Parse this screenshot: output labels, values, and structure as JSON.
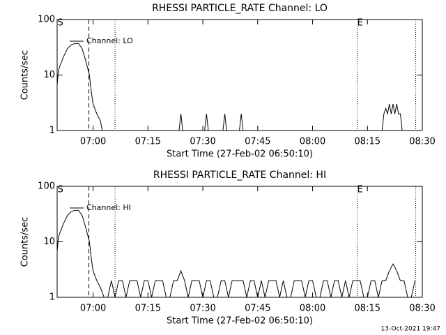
{
  "chart_data": [
    {
      "type": "line",
      "title": "RHESSI PARTICLE_RATE Channel: LO",
      "xlabel": "Start Time (27-Feb-02 06:50:10)",
      "ylabel": "Counts/sec",
      "log_y": true,
      "xlim": [
        50.17,
        150
      ],
      "ylim": [
        1,
        100
      ],
      "xticks": [
        {
          "value": 60,
          "label": "07:00"
        },
        {
          "value": 75,
          "label": "07:15"
        },
        {
          "value": 90,
          "label": "07:30"
        },
        {
          "value": 105,
          "label": "07:45"
        },
        {
          "value": 120,
          "label": "08:00"
        },
        {
          "value": 135,
          "label": "08:15"
        },
        {
          "value": 150,
          "label": "08:30"
        }
      ],
      "yticks": [
        1,
        10,
        100
      ],
      "vlines": [
        {
          "x": 58.85,
          "style": "dashed"
        },
        {
          "x": 66,
          "style": "dotted"
        },
        {
          "x": 132.2,
          "style": "dotted"
        },
        {
          "x": 148.2,
          "style": "dotted"
        }
      ],
      "markers": [
        {
          "x": 50.3,
          "label": "S"
        },
        {
          "x": 132.2,
          "label": "E"
        }
      ],
      "x": [
        50.2,
        50.5,
        51,
        52,
        53,
        54,
        55,
        56,
        57,
        58,
        59,
        59.5,
        60,
        61,
        62,
        62.5,
        70,
        83.5,
        84,
        84.5,
        85,
        90.5,
        91,
        91.5,
        92,
        95.5,
        96,
        96.5,
        97,
        100,
        100.5,
        101,
        110,
        139,
        139.5,
        140,
        140.5,
        141,
        141.5,
        142,
        142.5,
        143,
        143.5,
        144,
        144.5
      ],
      "series": [
        {
          "name": "Channel: LO",
          "color": "#000000",
          "values": [
            7,
            12,
            15,
            22,
            30,
            35,
            37,
            37,
            30,
            18,
            10,
            5,
            3,
            2,
            1.5,
            1,
            null,
            1,
            2,
            1,
            null,
            1,
            2,
            1,
            null,
            1,
            2,
            1,
            null,
            1,
            2,
            1,
            null,
            1,
            2,
            2.5,
            2,
            3,
            2,
            3,
            2,
            3,
            2,
            2,
            1
          ]
        }
      ]
    },
    {
      "type": "line",
      "title": "RHESSI PARTICLE_RATE Channel: HI",
      "xlabel": "Start Time (27-Feb-02 06:50:10)",
      "ylabel": "Counts/sec",
      "log_y": true,
      "xlim": [
        50.17,
        150
      ],
      "ylim": [
        1,
        100
      ],
      "xticks": [
        {
          "value": 60,
          "label": "07:00"
        },
        {
          "value": 75,
          "label": "07:15"
        },
        {
          "value": 90,
          "label": "07:30"
        },
        {
          "value": 105,
          "label": "07:45"
        },
        {
          "value": 120,
          "label": "08:00"
        },
        {
          "value": 135,
          "label": "08:15"
        },
        {
          "value": 150,
          "label": "08:30"
        }
      ],
      "yticks": [
        1,
        10,
        100
      ],
      "vlines": [
        {
          "x": 58.85,
          "style": "dashed"
        },
        {
          "x": 66,
          "style": "dotted"
        },
        {
          "x": 132.2,
          "style": "dotted"
        },
        {
          "x": 148.2,
          "style": "dotted"
        }
      ],
      "markers": [
        {
          "x": 50.3,
          "label": "S"
        },
        {
          "x": 132.2,
          "label": "E"
        }
      ],
      "x": [
        50.2,
        50.5,
        51,
        52,
        53,
        54,
        55,
        56,
        57,
        58,
        59,
        59.5,
        60,
        61,
        62,
        63,
        64,
        65,
        66,
        67,
        68,
        69,
        70,
        71,
        72,
        73,
        74,
        75,
        76,
        77,
        78,
        79,
        80,
        81,
        82,
        83,
        84,
        85,
        86,
        87,
        88,
        89,
        90,
        91,
        92,
        93,
        94,
        95,
        96,
        97,
        98,
        99,
        100,
        101,
        102,
        103,
        104,
        105,
        106,
        107,
        108,
        109,
        110,
        111,
        112,
        113,
        114,
        115,
        116,
        117,
        118,
        119,
        120,
        121,
        122,
        123,
        124,
        125,
        126,
        127,
        128,
        129,
        130,
        131,
        132,
        133,
        134,
        135,
        136,
        137,
        138,
        139,
        140,
        141,
        142,
        143,
        144,
        145,
        146,
        147,
        148
      ],
      "series": [
        {
          "name": "Channel: HI",
          "color": "#000000",
          "values": [
            7,
            12,
            15,
            22,
            30,
            35,
            37,
            37,
            30,
            18,
            10,
            5,
            3,
            2,
            1.5,
            1,
            1,
            2,
            1,
            2,
            2,
            1,
            2,
            2,
            2,
            1,
            2,
            2,
            1,
            2,
            2,
            2,
            1,
            1,
            2,
            2,
            3,
            2,
            1,
            2,
            2,
            2,
            1,
            2,
            2,
            1,
            1,
            2,
            2,
            1,
            2,
            2,
            2,
            2,
            1,
            2,
            2,
            1,
            2,
            1,
            2,
            2,
            2,
            1,
            2,
            1,
            1,
            2,
            2,
            2,
            1,
            2,
            2,
            1,
            1,
            2,
            2,
            1,
            2,
            2,
            1,
            2,
            1,
            2,
            2,
            2,
            1,
            1,
            2,
            2,
            1,
            2,
            2,
            3,
            4,
            3,
            2,
            2,
            1,
            1,
            2
          ]
        }
      ]
    }
  ],
  "footer": "13-Oct-2021 19:47"
}
